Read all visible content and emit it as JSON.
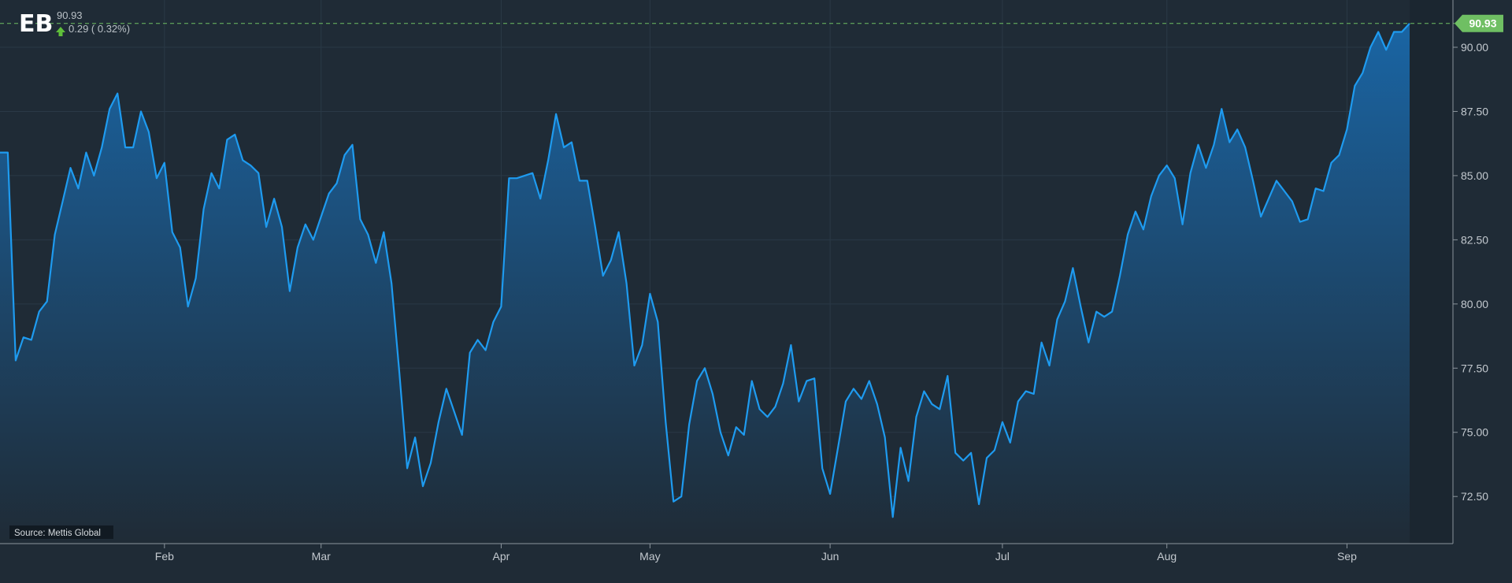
{
  "header": {
    "ticker": "EB",
    "price": "90.93",
    "change": "0.29 ( 0.32%)",
    "change_direction": "up"
  },
  "source_label": "Source: Mettis Global",
  "last_value_label": "90.93",
  "colors": {
    "background": "#1f2b36",
    "line": "#1e9bf0",
    "area_top": "#1a65a4",
    "area_bottom": "#1f2b36",
    "grid": "#2a3946",
    "axis_text": "#c3c9cf",
    "up": "#5fbf3a",
    "last_badge": "#6fbf63"
  },
  "chart_data": {
    "type": "area",
    "title": "",
    "xlabel": "",
    "ylabel": "",
    "ylim": [
      71.8,
      91.5
    ],
    "y_ticks": [
      "72.50",
      "75.00",
      "77.50",
      "80.00",
      "82.50",
      "85.00",
      "87.50",
      "90.00"
    ],
    "x_tick_labels": [
      "Feb",
      "Mar",
      "Apr",
      "May",
      "Jun",
      "Jul",
      "Aug",
      "Sep"
    ],
    "grid": true,
    "last_value": 90.93,
    "series": [
      {
        "values": [
          85.9,
          85.9,
          77.8,
          78.7,
          78.6,
          79.7,
          80.1,
          82.7,
          84.0,
          85.3,
          84.5,
          85.9,
          85.0,
          86.1,
          87.6,
          88.2,
          86.1,
          86.1,
          87.5,
          86.7,
          84.9,
          85.5,
          82.8,
          82.2,
          79.9,
          81.0,
          83.7,
          85.1,
          84.5,
          86.4,
          86.6,
          85.6,
          85.4,
          85.1,
          83.0,
          84.1,
          83.0,
          80.5,
          82.2,
          83.1,
          82.5,
          83.4,
          84.3,
          84.7,
          85.8,
          86.2,
          83.3,
          82.7,
          81.6,
          82.8,
          80.8,
          77.3,
          73.6,
          74.8,
          72.9,
          73.8,
          75.4,
          76.7,
          75.8,
          74.9,
          78.1,
          78.6,
          78.2,
          79.3,
          79.9,
          84.9,
          84.9,
          85.0,
          85.1,
          84.1,
          85.6,
          87.4,
          86.1,
          86.3,
          84.8,
          84.8,
          83.0,
          81.1,
          81.7,
          82.8,
          80.8,
          77.6,
          78.4,
          80.4,
          79.3,
          75.4,
          72.3,
          72.5,
          75.3,
          77.0,
          77.5,
          76.5,
          75.0,
          74.1,
          75.2,
          74.9,
          77.0,
          75.9,
          75.6,
          76.0,
          76.9,
          78.4,
          76.2,
          77.0,
          77.1,
          73.6,
          72.6,
          74.4,
          76.2,
          76.7,
          76.3,
          77.0,
          76.1,
          74.8,
          71.7,
          74.4,
          73.1,
          75.6,
          76.6,
          76.1,
          75.9,
          77.2,
          74.2,
          73.9,
          74.2,
          72.2,
          74.0,
          74.3,
          75.4,
          74.6,
          76.2,
          76.6,
          76.5,
          78.5,
          77.6,
          79.4,
          80.1,
          81.4,
          79.9,
          78.5,
          79.7,
          79.5,
          79.7,
          81.1,
          82.7,
          83.6,
          82.9,
          84.2,
          85.0,
          85.4,
          84.9,
          83.1,
          85.1,
          86.2,
          85.3,
          86.2,
          87.6,
          86.3,
          86.8,
          86.1,
          84.8,
          83.4,
          84.1,
          84.8,
          84.4,
          84.0,
          83.2,
          83.3,
          84.5,
          84.4,
          85.5,
          85.8,
          86.8,
          88.5,
          89.0,
          90.0,
          90.6,
          89.9,
          90.6,
          90.6,
          90.93
        ]
      }
    ]
  }
}
